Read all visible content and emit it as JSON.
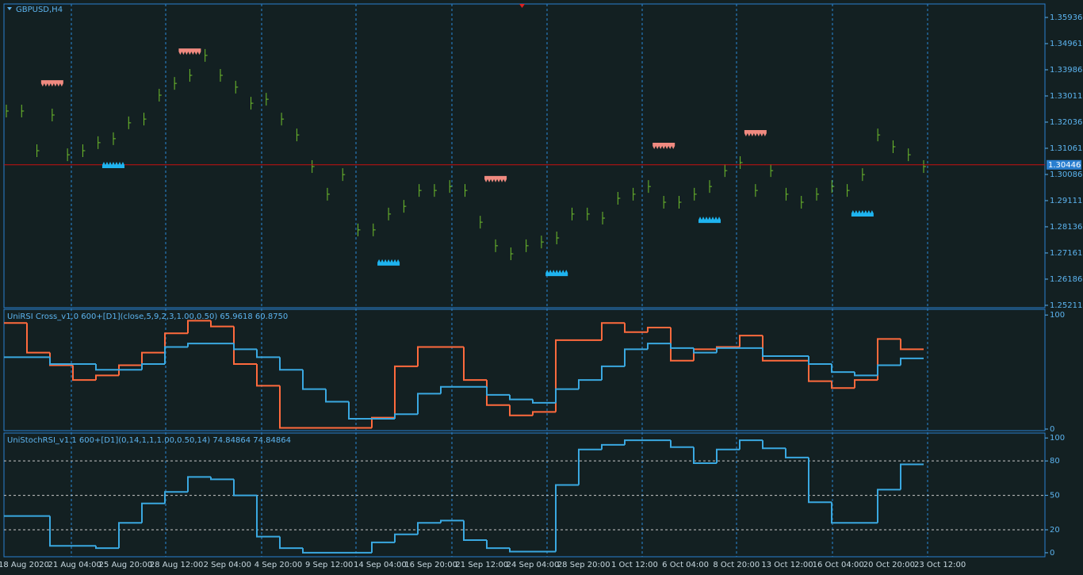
{
  "chart_data": [
    {
      "type": "price",
      "title": "GBPUSD,H4",
      "color": "#6fbf2c",
      "values": [
        1.3245,
        1.3245,
        1.3097,
        1.323,
        1.3082,
        1.3097,
        1.3127,
        1.3142,
        1.3201,
        1.3215,
        1.3304,
        1.3348,
        1.3378,
        1.3452,
        1.3378,
        1.3334,
        1.3274,
        1.3289,
        1.3215,
        1.3156,
        1.3038,
        1.2935,
        1.3008,
        1.2802,
        1.2802,
        1.2861,
        1.289,
        1.2949,
        1.2949,
        1.2964,
        1.2949,
        1.2831,
        1.2743,
        1.2713,
        1.2743,
        1.2757,
        1.2772,
        1.2861,
        1.2861,
        1.2846,
        1.292,
        1.2935,
        1.2964,
        1.2905,
        1.2905,
        1.2935,
        1.2964,
        1.3023,
        1.3053,
        1.2949,
        1.3023,
        1.2935,
        1.2905,
        1.2935,
        1.2964,
        1.2949,
        1.3008,
        1.3156,
        1.3112,
        1.3082,
        1.3038
      ],
      "ylim": [
        1.25121,
        1.36438
      ],
      "yticks": [
        1.35936,
        1.34961,
        1.33986,
        1.33011,
        1.32036,
        1.31061,
        1.30086,
        1.29111,
        1.28136,
        1.27161,
        1.26186,
        1.25211
      ],
      "current_price": 1.30446,
      "current_price_color": "#c81010",
      "sell_signals": {
        "color": "#f08a80",
        "indices": [
          3,
          12,
          32,
          43,
          49
        ],
        "values": [
          1.3348,
          1.3466,
          1.2991,
          1.3115,
          1.3162
        ]
      },
      "buy_signals": {
        "color": "#1eb4f0",
        "indices": [
          7,
          25,
          36,
          46,
          56
        ],
        "values": [
          1.3032,
          1.2669,
          1.263,
          1.2828,
          1.2852
        ]
      }
    },
    {
      "type": "step",
      "title": "UniRSI Cross_v1.0 600+[D1](close,5,9,2,3,1.00,0.50) 65.9618 60.8750",
      "ylim": [
        -1.4,
        105
      ],
      "yticks": [
        100,
        0
      ],
      "series": [
        {
          "color": "#ff6a3d",
          "values": [
            93,
            67,
            56,
            43,
            47,
            56,
            67,
            84,
            95,
            90,
            57,
            38,
            1,
            1,
            1,
            1,
            10,
            55,
            72,
            72,
            43,
            21,
            12,
            15,
            78,
            78,
            93,
            85,
            89,
            60,
            70,
            72,
            82,
            60,
            60,
            42,
            36,
            43,
            79,
            70
          ]
        },
        {
          "color": "#3aa8e0",
          "values": [
            63,
            63,
            57,
            57,
            52,
            52,
            57,
            72,
            75,
            75,
            70,
            63,
            52,
            35,
            24,
            9,
            9,
            13,
            31,
            37,
            37,
            30,
            26,
            23,
            35,
            43,
            55,
            70,
            75,
            71,
            67,
            71,
            71,
            64,
            64,
            57,
            50,
            47,
            56,
            62
          ]
        }
      ]
    },
    {
      "type": "step",
      "title": "UniStochRSI_v1.1 600+[D1](0,14,1,1,1.00,0.50,14) 74.84864 74.84864",
      "ylim": [
        -3.5,
        104.3
      ],
      "yticks": [
        100,
        80,
        50,
        20,
        0
      ],
      "levels": [
        80,
        50,
        20
      ],
      "series": [
        {
          "color": "#3aa8e0",
          "values": [
            32,
            32,
            6,
            6,
            4,
            26,
            43,
            53,
            66,
            64,
            50,
            14,
            4,
            0,
            0,
            0,
            9,
            16,
            26,
            28,
            11,
            4,
            1,
            1,
            59,
            90,
            94,
            98,
            98,
            92,
            78,
            90,
            98,
            91,
            83,
            44,
            26,
            26,
            55,
            77
          ]
        }
      ],
      "x_labels": [
        "18 Aug 2020",
        "21 Aug 04:00",
        "25 Aug 20:00",
        "28 Aug 12:00",
        "2 Sep 04:00",
        "4 Sep 20:00",
        "9 Sep 12:00",
        "14 Sep 04:00",
        "16 Sep 20:00",
        "21 Sep 12:00",
        "24 Sep 04:00",
        "28 Sep 20:00",
        "1 Oct 12:00",
        "6 Oct 04:00",
        "8 Oct 20:00",
        "13 Oct 12:00",
        "16 Oct 04:00",
        "20 Oct 20:00",
        "23 Oct 12:00"
      ]
    }
  ]
}
